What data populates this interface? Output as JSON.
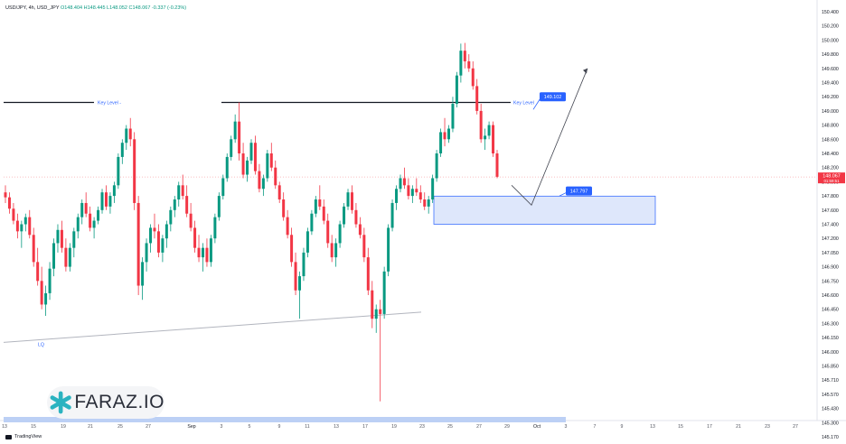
{
  "header": {
    "symbol": "USD/JPY, 4h, USD_JPY",
    "open": "O148.404",
    "high": "H148.445",
    "low": "L148.052",
    "close": "C148.067",
    "change": "-0.337 (-0.23%)"
  },
  "footer": {
    "tradingview_label": "TradingView"
  },
  "brand": {
    "name": "FARAZ.IO"
  },
  "colors": {
    "up": "#089981",
    "down": "#f23645",
    "accent": "#2962ff",
    "zone_fill": "#dbe5fb",
    "zone_stroke": "#2962ff"
  },
  "chart_data": {
    "type": "candlestick",
    "y_axis": {
      "ticks": [
        "150.400",
        "150.200",
        "150.000",
        "149.800",
        "149.600",
        "149.400",
        "149.200",
        "149.000",
        "148.800",
        "148.600",
        "148.400",
        "148.200",
        "148.000",
        "147.800",
        "147.600",
        "147.400",
        "147.200",
        "147.050",
        "146.900",
        "146.750",
        "146.600",
        "146.450",
        "146.300",
        "146.150",
        "146.000",
        "145.850",
        "145.710",
        "145.570",
        "145.430",
        "145.300",
        "145.170"
      ]
    },
    "x_axis": {
      "ticks": [
        "13",
        "15",
        "19",
        "21",
        "25",
        "27",
        "Sep",
        "3",
        "5",
        "9",
        "11",
        "13",
        "17",
        "19",
        "23",
        "25",
        "27",
        "29",
        "Oct",
        "3",
        "7",
        "9",
        "13",
        "15",
        "17",
        "21",
        "23",
        "27",
        "29"
      ]
    },
    "current_price": {
      "value": "148.067",
      "countdown": "01:59:51"
    },
    "annotations": {
      "key_level_left_label": "Key Level -",
      "key_level_right_label": "Key Level",
      "key_level_badge": "149.102",
      "zone_badge": "147.797",
      "lq_label": "LQ"
    },
    "candles_ohlc": [
      [
        147.85,
        147.95,
        147.7,
        147.78
      ],
      [
        147.78,
        147.85,
        147.55,
        147.62
      ],
      [
        147.62,
        147.7,
        147.4,
        147.45
      ],
      [
        147.45,
        147.55,
        147.2,
        147.3
      ],
      [
        147.3,
        147.45,
        147.1,
        147.4
      ],
      [
        147.4,
        147.55,
        147.3,
        147.5
      ],
      [
        147.5,
        147.6,
        147.2,
        147.25
      ],
      [
        147.25,
        147.35,
        146.9,
        146.95
      ],
      [
        146.95,
        147.1,
        146.7,
        146.75
      ],
      [
        146.75,
        146.9,
        146.45,
        146.5
      ],
      [
        146.5,
        146.7,
        146.38,
        146.62
      ],
      [
        146.62,
        146.95,
        146.55,
        146.88
      ],
      [
        146.88,
        147.2,
        146.8,
        147.15
      ],
      [
        147.15,
        147.4,
        147.05,
        147.32
      ],
      [
        147.32,
        147.45,
        147.05,
        147.1
      ],
      [
        147.1,
        147.2,
        146.85,
        146.9
      ],
      [
        146.9,
        147.15,
        146.85,
        147.1
      ],
      [
        147.1,
        147.35,
        147.0,
        147.3
      ],
      [
        147.3,
        147.55,
        147.2,
        147.5
      ],
      [
        147.5,
        147.75,
        147.4,
        147.7
      ],
      [
        147.7,
        147.85,
        147.5,
        147.55
      ],
      [
        147.55,
        147.65,
        147.3,
        147.35
      ],
      [
        147.35,
        147.5,
        147.2,
        147.45
      ],
      [
        147.45,
        147.65,
        147.4,
        147.6
      ],
      [
        147.6,
        147.9,
        147.55,
        147.85
      ],
      [
        147.85,
        147.95,
        147.6,
        147.65
      ],
      [
        147.65,
        147.85,
        147.55,
        147.8
      ],
      [
        147.8,
        148.0,
        147.7,
        147.95
      ],
      [
        147.95,
        148.4,
        147.9,
        148.35
      ],
      [
        148.35,
        148.6,
        148.25,
        148.55
      ],
      [
        148.55,
        148.8,
        148.45,
        148.75
      ],
      [
        148.75,
        148.9,
        148.5,
        148.6
      ],
      [
        148.6,
        148.7,
        147.6,
        147.7
      ],
      [
        147.7,
        147.8,
        146.6,
        146.7
      ],
      [
        146.7,
        147.0,
        146.55,
        146.95
      ],
      [
        146.95,
        147.2,
        146.85,
        147.15
      ],
      [
        147.15,
        147.4,
        147.05,
        147.35
      ],
      [
        147.35,
        147.55,
        147.2,
        147.3
      ],
      [
        147.3,
        147.4,
        147.0,
        147.05
      ],
      [
        147.05,
        147.25,
        146.95,
        147.2
      ],
      [
        147.2,
        147.45,
        147.1,
        147.4
      ],
      [
        147.4,
        147.65,
        147.3,
        147.6
      ],
      [
        147.6,
        147.8,
        147.5,
        147.75
      ],
      [
        147.75,
        148.0,
        147.65,
        147.95
      ],
      [
        147.95,
        148.1,
        147.75,
        147.8
      ],
      [
        147.8,
        147.95,
        147.5,
        147.55
      ],
      [
        147.55,
        147.7,
        147.3,
        147.35
      ],
      [
        147.35,
        147.45,
        147.05,
        147.1
      ],
      [
        147.1,
        147.25,
        146.95,
        147.0
      ],
      [
        147.0,
        147.15,
        146.85,
        147.1
      ],
      [
        147.1,
        147.2,
        146.9,
        146.95
      ],
      [
        146.95,
        147.25,
        146.9,
        147.2
      ],
      [
        147.2,
        147.55,
        147.15,
        147.5
      ],
      [
        147.5,
        147.85,
        147.45,
        147.8
      ],
      [
        147.8,
        148.1,
        147.75,
        148.05
      ],
      [
        148.05,
        148.4,
        148.0,
        148.35
      ],
      [
        148.35,
        148.65,
        148.3,
        148.6
      ],
      [
        148.6,
        148.95,
        148.55,
        148.85
      ],
      [
        148.85,
        149.12,
        148.3,
        148.4
      ],
      [
        148.4,
        148.55,
        148.05,
        148.1
      ],
      [
        148.1,
        148.35,
        148.0,
        148.3
      ],
      [
        148.3,
        148.6,
        148.25,
        148.55
      ],
      [
        148.55,
        148.65,
        148.1,
        148.15
      ],
      [
        148.15,
        148.25,
        147.85,
        147.9
      ],
      [
        147.9,
        148.1,
        147.8,
        148.05
      ],
      [
        148.05,
        148.45,
        148.0,
        148.4
      ],
      [
        148.4,
        148.55,
        148.15,
        148.2
      ],
      [
        148.2,
        148.3,
        147.9,
        147.95
      ],
      [
        147.95,
        148.0,
        147.7,
        147.75
      ],
      [
        147.75,
        147.85,
        147.45,
        147.5
      ],
      [
        147.5,
        147.6,
        147.2,
        147.25
      ],
      [
        147.25,
        147.35,
        146.9,
        146.95
      ],
      [
        146.95,
        147.05,
        146.6,
        146.65
      ],
      [
        146.65,
        146.85,
        146.35,
        146.8
      ],
      [
        146.8,
        147.1,
        146.75,
        147.05
      ],
      [
        147.05,
        147.35,
        147.0,
        147.3
      ],
      [
        147.3,
        147.6,
        147.25,
        147.55
      ],
      [
        147.55,
        147.8,
        147.5,
        147.75
      ],
      [
        147.75,
        147.95,
        147.6,
        147.65
      ],
      [
        147.65,
        147.75,
        147.4,
        147.45
      ],
      [
        147.45,
        147.55,
        147.1,
        147.15
      ],
      [
        147.15,
        147.25,
        146.95,
        147.0
      ],
      [
        147.0,
        147.2,
        146.9,
        147.15
      ],
      [
        147.15,
        147.45,
        147.1,
        147.4
      ],
      [
        147.4,
        147.7,
        147.35,
        147.65
      ],
      [
        147.65,
        147.9,
        147.6,
        147.85
      ],
      [
        147.85,
        147.95,
        147.55,
        147.6
      ],
      [
        147.6,
        147.7,
        147.35,
        147.4
      ],
      [
        147.4,
        147.5,
        147.2,
        147.25
      ],
      [
        147.25,
        147.35,
        146.95,
        147.0
      ],
      [
        147.0,
        147.1,
        146.6,
        146.65
      ],
      [
        146.65,
        146.75,
        146.25,
        146.35
      ],
      [
        146.35,
        146.5,
        146.2,
        146.45
      ],
      [
        146.45,
        146.55,
        145.5,
        146.4
      ],
      [
        146.4,
        146.9,
        146.35,
        146.85
      ],
      [
        146.85,
        147.4,
        146.8,
        147.35
      ],
      [
        147.35,
        147.75,
        147.3,
        147.7
      ],
      [
        147.7,
        147.95,
        147.6,
        147.9
      ],
      [
        147.9,
        148.1,
        147.85,
        148.05
      ],
      [
        148.05,
        148.2,
        147.9,
        147.95
      ],
      [
        147.95,
        148.05,
        147.75,
        147.8
      ],
      [
        147.8,
        147.95,
        147.7,
        147.9
      ],
      [
        147.9,
        148.05,
        147.8,
        147.85
      ],
      [
        147.85,
        147.95,
        147.7,
        147.75
      ],
      [
        147.75,
        147.85,
        147.6,
        147.65
      ],
      [
        147.65,
        147.8,
        147.55,
        147.75
      ],
      [
        147.75,
        148.1,
        147.7,
        148.05
      ],
      [
        148.05,
        148.45,
        148.0,
        148.4
      ],
      [
        148.4,
        148.75,
        148.35,
        148.7
      ],
      [
        148.7,
        148.9,
        148.5,
        148.6
      ],
      [
        148.6,
        148.8,
        148.55,
        148.75
      ],
      [
        148.75,
        149.2,
        148.7,
        149.1
      ],
      [
        149.1,
        149.55,
        149.05,
        149.5
      ],
      [
        149.5,
        149.95,
        149.4,
        149.85
      ],
      [
        149.85,
        149.96,
        149.6,
        149.7
      ],
      [
        149.7,
        149.8,
        149.55,
        149.6
      ],
      [
        149.6,
        149.7,
        149.3,
        149.35
      ],
      [
        149.35,
        149.45,
        148.95,
        149.0
      ],
      [
        149.0,
        149.1,
        148.55,
        148.6
      ],
      [
        148.6,
        148.75,
        148.45,
        148.65
      ],
      [
        148.65,
        148.85,
        148.6,
        148.8
      ],
      [
        148.8,
        148.85,
        148.35,
        148.4
      ],
      [
        148.4,
        148.45,
        148.05,
        148.07
      ]
    ]
  }
}
